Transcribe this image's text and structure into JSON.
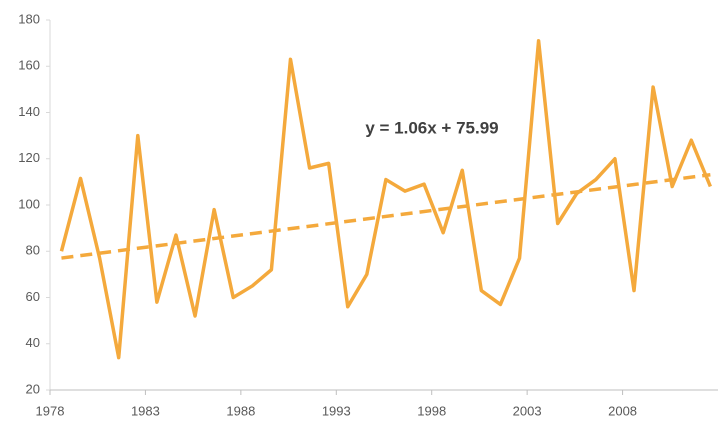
{
  "chart_data": {
    "type": "line",
    "categories": [
      "1978",
      null,
      null,
      null,
      null,
      "1983",
      null,
      null,
      null,
      null,
      "1988",
      null,
      null,
      null,
      null,
      "1993",
      null,
      null,
      null,
      null,
      "1998",
      null,
      null,
      null,
      null,
      "2003",
      null,
      null,
      null,
      null,
      "2008",
      null,
      null,
      null,
      null
    ],
    "series": [
      {
        "color": "#f4a93c",
        "values": [
          80,
          111.5,
          77,
          34,
          130,
          58,
          87,
          52,
          98,
          60,
          65,
          72,
          163,
          116,
          118,
          56,
          70,
          111,
          106,
          109,
          88,
          115,
          63,
          57,
          77,
          171,
          92,
          105,
          111,
          120,
          63,
          151,
          108,
          128,
          108
        ]
      }
    ],
    "trendline": {
      "slope": 1.06,
      "intercept": 75.99,
      "color": "#f4a93c",
      "style": "dashed"
    },
    "annotation": "y = 1.06x + 75.99",
    "ylim": [
      20,
      180
    ],
    "yticks": [
      20,
      40,
      60,
      80,
      100,
      120,
      140,
      160,
      180
    ],
    "grid": false
  }
}
